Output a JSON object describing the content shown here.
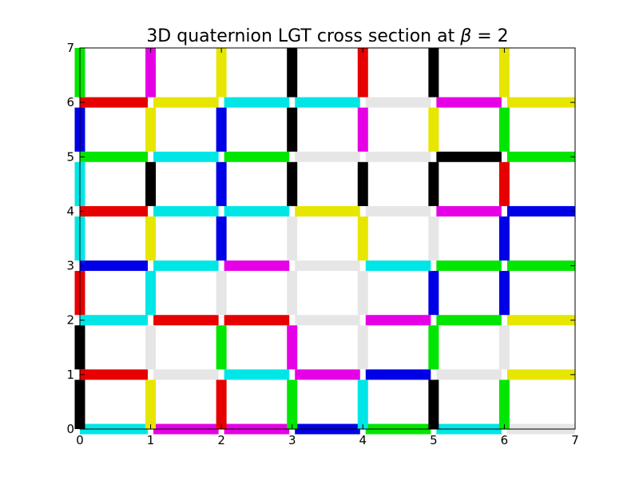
{
  "chart_data": {
    "type": "lattice",
    "title_prefix": "3D quaternion LGT cross section at ",
    "title_beta": "β",
    "title_eq": " = 2",
    "xlabel": "",
    "ylabel": "",
    "xlim": [
      0,
      7
    ],
    "ylim": [
      0,
      7
    ],
    "xticks": [
      "0",
      "1",
      "2",
      "3",
      "4",
      "5",
      "6",
      "7"
    ],
    "yticks": [
      "0",
      "1",
      "2",
      "3",
      "4",
      "5",
      "6",
      "7"
    ],
    "grid": false,
    "colors": {
      "g": "#00e600",
      "r": "#e60000",
      "m": "#e600e6",
      "y": "#e6e600",
      "k": "#000000",
      "b": "#0000e6",
      "c": "#00e6e6",
      "w": "#e6e6e6"
    },
    "horizontal_links": [
      [
        "c",
        "m",
        "m",
        "b",
        "g",
        "c",
        "w"
      ],
      [
        "r",
        "w",
        "c",
        "m",
        "b",
        "w",
        "y"
      ],
      [
        "c",
        "r",
        "r",
        "w",
        "m",
        "g",
        "y"
      ],
      [
        "b",
        "c",
        "m",
        "w",
        "c",
        "g",
        "g"
      ],
      [
        "r",
        "c",
        "c",
        "y",
        "w",
        "m",
        "b"
      ],
      [
        "g",
        "c",
        "g",
        "w",
        "w",
        "k",
        "g"
      ],
      [
        "r",
        "y",
        "c",
        "c",
        "w",
        "m",
        "y"
      ]
    ],
    "vertical_links": [
      [
        "k",
        "y",
        "r",
        "g",
        "c",
        "k",
        "g"
      ],
      [
        "k",
        "w",
        "g",
        "m",
        "w",
        "g",
        "w"
      ],
      [
        "r",
        "c",
        "w",
        "w",
        "w",
        "b",
        "b"
      ],
      [
        "c",
        "y",
        "b",
        "w",
        "y",
        "w",
        "b"
      ],
      [
        "c",
        "k",
        "b",
        "k",
        "k",
        "k",
        "r"
      ],
      [
        "b",
        "y",
        "b",
        "k",
        "m",
        "y",
        "g"
      ],
      [
        "g",
        "m",
        "y",
        "k",
        "r",
        "k",
        "y"
      ]
    ]
  }
}
